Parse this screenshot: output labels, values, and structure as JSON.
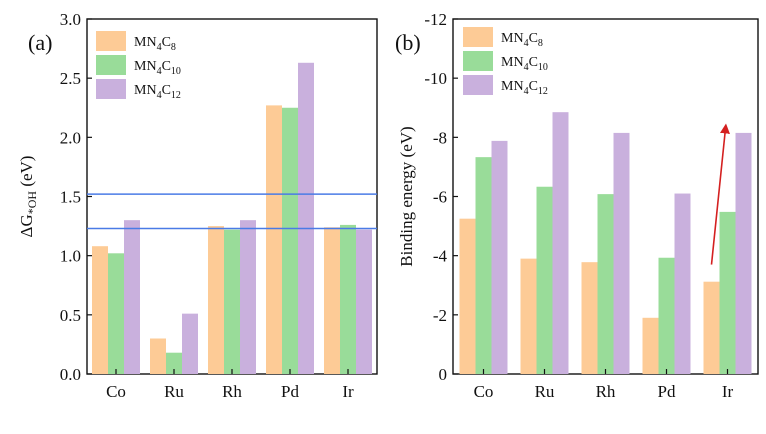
{
  "chart_data": [
    {
      "panel": "a",
      "panel_label": "(a)",
      "type": "bar",
      "categories": [
        "Co",
        "Ru",
        "Rh",
        "Pd",
        "Ir"
      ],
      "series": [
        {
          "name": "MN4C8",
          "base": "MN",
          "sub1": "4",
          "mid": "C",
          "sub2": "8",
          "color": "#FDCB96",
          "values": [
            1.08,
            0.3,
            1.25,
            2.27,
            1.24
          ]
        },
        {
          "name": "MN4C10",
          "base": "MN",
          "sub1": "4",
          "mid": "C",
          "sub2": "10",
          "color": "#99DC99",
          "values": [
            1.02,
            0.18,
            1.22,
            2.25,
            1.26
          ]
        },
        {
          "name": "MN4C12",
          "base": "MN",
          "sub1": "4",
          "mid": "C",
          "sub2": "12",
          "color": "#C9B0DD",
          "values": [
            1.3,
            0.51,
            1.3,
            2.63,
            1.22
          ]
        }
      ],
      "ylabel": "ΔG*OH (eV)",
      "ylabel_main": "ΔG",
      "ylabel_sub": "*OH",
      "ylabel_unit": " (eV)",
      "xlabel": "",
      "ylim": [
        0,
        3.0
      ],
      "yticks": [
        "0.0",
        "0.5",
        "1.0",
        "1.5",
        "2.0",
        "2.5",
        "3.0"
      ],
      "ytick_values": [
        0,
        0.5,
        1.0,
        1.5,
        2.0,
        2.5,
        3.0
      ],
      "hlines": [
        1.52,
        1.23
      ],
      "hline_color": "#4A7BE6",
      "legend_position": "top-left"
    },
    {
      "panel": "b",
      "panel_label": "(b)",
      "type": "bar",
      "categories": [
        "Co",
        "Ru",
        "Rh",
        "Pd",
        "Ir"
      ],
      "series": [
        {
          "name": "MN4C8",
          "base": "MN",
          "sub1": "4",
          "mid": "C",
          "sub2": "8",
          "color": "#FDCB96",
          "values": [
            -5.25,
            -3.9,
            -3.78,
            -1.9,
            -3.12
          ]
        },
        {
          "name": "MN4C10",
          "base": "MN",
          "sub1": "4",
          "mid": "C",
          "sub2": "10",
          "color": "#99DC99",
          "values": [
            -7.33,
            -6.33,
            -6.08,
            -3.93,
            -5.48
          ]
        },
        {
          "name": "MN4C12",
          "base": "MN",
          "sub1": "4",
          "mid": "C",
          "sub2": "12",
          "color": "#C9B0DD",
          "values": [
            -7.88,
            -8.85,
            -8.15,
            -6.1,
            -8.15
          ]
        }
      ],
      "ylabel": "Binding energy (eV)",
      "xlabel": "",
      "ylim": [
        0,
        -12
      ],
      "yticks": [
        "0",
        "-2",
        "-4",
        "-6",
        "-8",
        "-10",
        "-12"
      ],
      "ytick_values": [
        0,
        -2,
        -4,
        -6,
        -8,
        -10,
        -12
      ],
      "annotation_arrow": {
        "category": "Ir",
        "from_value": -3.7,
        "to_value": -8.3,
        "color": "#D42020"
      },
      "legend_position": "top-left"
    }
  ]
}
